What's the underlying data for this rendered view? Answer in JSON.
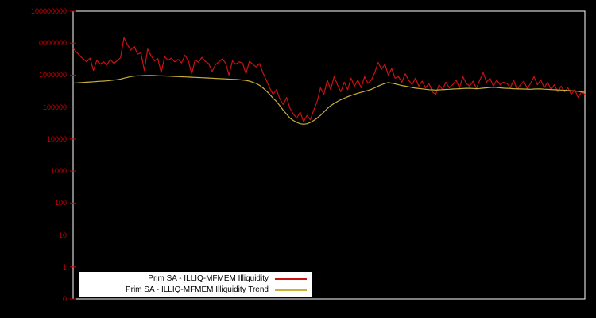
{
  "window": {
    "background": "#000000"
  },
  "chart_data": {
    "type": "line",
    "title": "",
    "xlabel": "",
    "ylabel": "",
    "grid": false,
    "frame_color": "#ffffff",
    "background": "#000000",
    "x_axis": {
      "tick_labels": []
    },
    "y_axis": {
      "scale": "log",
      "tick_labels": [
        "100000000",
        "10000000",
        "1000000",
        "100000",
        "10000",
        "1000",
        "100",
        "10",
        "1",
        "0"
      ],
      "label_color": "#cc0000",
      "tick_color": "#cc0000",
      "range_top": 100000000,
      "range_bottom": 0
    },
    "legend": {
      "position": "bottom-center",
      "background": "#ffffff",
      "text_color": "#000000"
    },
    "series": [
      {
        "name": "Prim SA - ILLIQ-MFMEM Illiquidity",
        "color": "#cc1111",
        "width": 1.2,
        "values": [
          7000000,
          5200000,
          4000000,
          3200000,
          2600000,
          3400000,
          1400000,
          2900000,
          2200000,
          2600000,
          2100000,
          3100000,
          2300000,
          2800000,
          3500000,
          15000000,
          9000000,
          6000000,
          8000000,
          4500000,
          5000000,
          1400000,
          6500000,
          4000000,
          2800000,
          3300000,
          1200000,
          3800000,
          2900000,
          3400000,
          2600000,
          3100000,
          2400000,
          4200000,
          2800000,
          1100000,
          3000000,
          2500000,
          3600000,
          2700000,
          2300000,
          1300000,
          2100000,
          2600000,
          3200000,
          2400000,
          1000000,
          2800000,
          2200000,
          2600000,
          2400000,
          1100000,
          2700000,
          2200000,
          1800000,
          2300000,
          1200000,
          700000,
          400000,
          250000,
          350000,
          180000,
          120000,
          200000,
          90000,
          60000,
          45000,
          70000,
          35000,
          55000,
          40000,
          80000,
          150000,
          400000,
          250000,
          700000,
          350000,
          900000,
          500000,
          300000,
          600000,
          350000,
          800000,
          450000,
          700000,
          400000,
          900000,
          550000,
          700000,
          1200000,
          2500000,
          1500000,
          2200000,
          1000000,
          1600000,
          800000,
          900000,
          600000,
          1100000,
          700000,
          500000,
          800000,
          450000,
          650000,
          400000,
          550000,
          300000,
          250000,
          500000,
          350000,
          600000,
          400000,
          500000,
          700000,
          400000,
          900000,
          550000,
          450000,
          650000,
          380000,
          700000,
          1200000,
          600000,
          800000,
          450000,
          700000,
          500000,
          600000,
          550000,
          400000,
          700000,
          350000,
          500000,
          650000,
          380000,
          550000,
          900000,
          500000,
          700000,
          400000,
          600000,
          350000,
          500000,
          300000,
          450000,
          300000,
          400000,
          250000,
          350000,
          200000,
          300000,
          250000
        ]
      },
      {
        "name": "Prim SA - ILLIQ-MFMEM Illiquidity Trend",
        "color": "#c9b037",
        "width": 1.2,
        "values": [
          560000,
          570000,
          580000,
          590000,
          600000,
          610000,
          620000,
          630000,
          640000,
          650000,
          660000,
          680000,
          700000,
          720000,
          750000,
          800000,
          850000,
          900000,
          930000,
          950000,
          960000,
          970000,
          980000,
          980000,
          970000,
          960000,
          950000,
          940000,
          930000,
          920000,
          910000,
          900000,
          890000,
          880000,
          870000,
          860000,
          850000,
          840000,
          830000,
          820000,
          810000,
          800000,
          790000,
          780000,
          770000,
          760000,
          750000,
          740000,
          730000,
          720000,
          700000,
          680000,
          650000,
          600000,
          550000,
          480000,
          400000,
          320000,
          250000,
          190000,
          150000,
          110000,
          80000,
          60000,
          45000,
          38000,
          33000,
          30000,
          29000,
          30000,
          33000,
          38000,
          45000,
          55000,
          70000,
          90000,
          110000,
          130000,
          150000,
          170000,
          190000,
          210000,
          230000,
          250000,
          270000,
          290000,
          310000,
          330000,
          360000,
          400000,
          450000,
          500000,
          550000,
          580000,
          560000,
          530000,
          500000,
          470000,
          450000,
          430000,
          410000,
          390000,
          380000,
          370000,
          360000,
          350000,
          345000,
          340000,
          345000,
          350000,
          355000,
          360000,
          365000,
          370000,
          375000,
          380000,
          385000,
          385000,
          380000,
          375000,
          380000,
          390000,
          400000,
          410000,
          415000,
          410000,
          400000,
          390000,
          385000,
          380000,
          375000,
          370000,
          368000,
          365000,
          363000,
          360000,
          365000,
          370000,
          368000,
          362000,
          358000,
          352000,
          348000,
          344000,
          340000,
          335000,
          330000,
          325000,
          318000,
          310000,
          300000,
          290000
        ]
      }
    ]
  }
}
